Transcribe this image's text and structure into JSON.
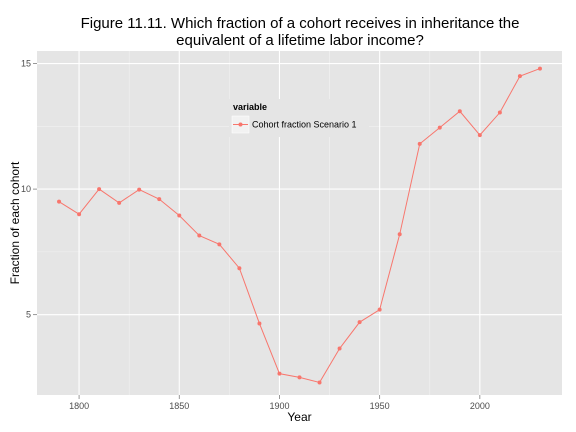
{
  "chart_data": {
    "type": "line",
    "title_lines": [
      "Figure 11.11. Which fraction of a cohort receives in inheritance the",
      "equivalent of a lifetime labor income?"
    ],
    "xlabel": "Year",
    "ylabel": "Fraction of each cohort",
    "xlim": [
      1779,
      2041
    ],
    "ylim": [
      1.8,
      15.5
    ],
    "x_ticks": [
      1800,
      1850,
      1900,
      1950,
      2000
    ],
    "y_ticks": [
      5,
      10,
      15
    ],
    "grid": true,
    "legend": {
      "title": "variable",
      "placement": "top-center",
      "entries": [
        "Cohort fraction Scenario 1"
      ]
    },
    "series": [
      {
        "name": "Cohort fraction Scenario 1",
        "color": "#F8766D",
        "x": [
          1790,
          1800,
          1810,
          1820,
          1830,
          1840,
          1850,
          1860,
          1870,
          1880,
          1890,
          1900,
          1910,
          1920,
          1930,
          1940,
          1950,
          1960,
          1970,
          1980,
          1990,
          2000,
          2010,
          2020,
          2030
        ],
        "y": [
          9.5,
          9.0,
          10.0,
          9.45,
          9.98,
          9.6,
          8.95,
          8.15,
          7.8,
          6.85,
          4.65,
          2.65,
          2.5,
          2.3,
          3.65,
          4.7,
          5.2,
          8.2,
          11.8,
          12.45,
          13.1,
          12.15,
          13.05,
          14.5,
          14.8
        ]
      }
    ]
  }
}
